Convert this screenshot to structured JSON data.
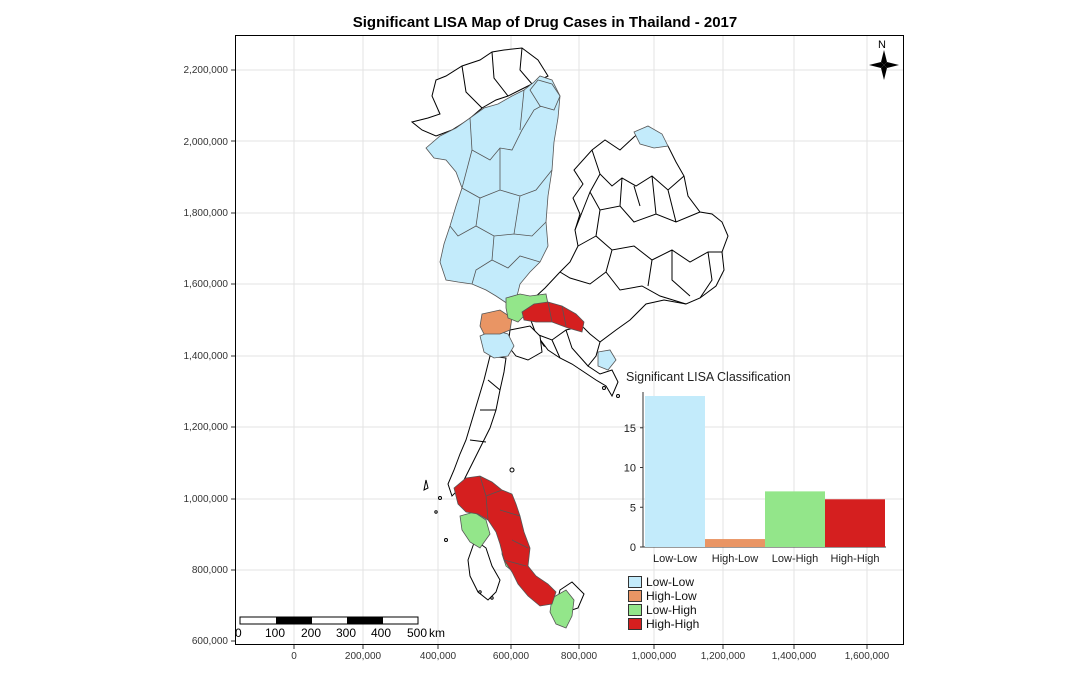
{
  "title": "Significant LISA Map of Drug Cases in Thailand - 2017",
  "y_ticks": [
    "2,200,000",
    "2,000,000",
    "1,800,000",
    "1,600,000",
    "1,400,000",
    "1,200,000",
    "1,000,000",
    "800,000",
    "600,000"
  ],
  "x_ticks": [
    "0",
    "200,000",
    "400,000",
    "600,000",
    "800,000",
    "1,000,000",
    "1,200,000",
    "1,400,000",
    "1,600,000"
  ],
  "north_arrow": {
    "label": "N",
    "icon": "compass-rose-icon"
  },
  "scale_bar": {
    "labels": [
      "0",
      "100",
      "200",
      "300",
      "400",
      "500"
    ],
    "unit": "km"
  },
  "legend": {
    "entries": [
      {
        "label": "Low-Low",
        "color": "#c3ebfb"
      },
      {
        "label": "High-Low",
        "color": "#e99564"
      },
      {
        "label": "Low-High",
        "color": "#93e68a"
      },
      {
        "label": "High-High",
        "color": "#d51f1f"
      }
    ]
  },
  "chart_data": {
    "type": "bar",
    "title": "Significant LISA Classification",
    "categories": [
      "Low-Low",
      "High-Low",
      "Low-High",
      "High-High"
    ],
    "values": [
      19,
      1,
      7,
      6
    ],
    "colors": [
      "#c3ebfb",
      "#e99564",
      "#93e68a",
      "#d51f1f"
    ],
    "yticks": [
      "0",
      "5",
      "10",
      "15"
    ],
    "ylim": [
      0,
      19
    ]
  }
}
